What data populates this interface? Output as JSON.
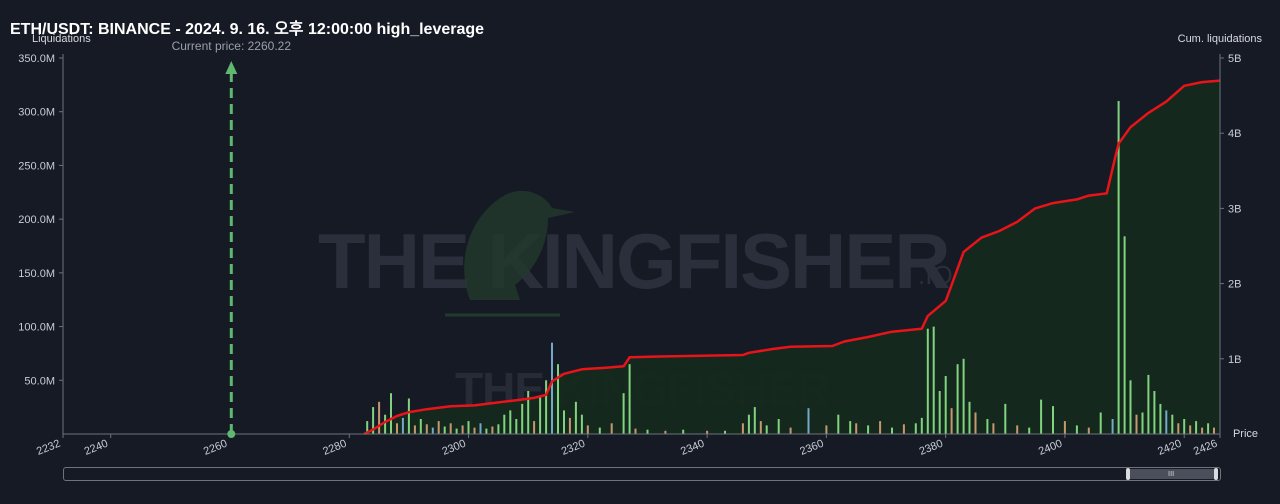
{
  "title": "ETH/USDT: BINANCE - 2024. 9. 16. 오후 12:00:00 high_leverage",
  "watermark": {
    "main": "THE KINGFISHER",
    "suffix": ".IO"
  },
  "scrollbar": {
    "grip": "III"
  },
  "colors": {
    "background": "#161a25",
    "cum_line": "#e8141a",
    "cum_fill": "#14291c",
    "current_price_marker": "#5fb870",
    "bar_green": "#8ee58a",
    "bar_orange": "#d8a47a",
    "bar_blue": "#7fb7d8"
  },
  "chart_data": {
    "type": "bar",
    "xlabel": "Price",
    "ylabel": "Liquidations",
    "y2label": "Cum. liquidations",
    "xlim": [
      2232,
      2426
    ],
    "ylim": [
      0,
      350000000
    ],
    "y2lim": [
      0,
      5000000000
    ],
    "x_ticks": [
      2232,
      2240,
      2260,
      2280,
      2300,
      2320,
      2340,
      2360,
      2380,
      2400,
      2420,
      2426
    ],
    "y_ticks": [
      "50.0M",
      "100.0M",
      "150.0M",
      "200.0M",
      "250.0M",
      "300.0M",
      "350.0M"
    ],
    "y2_ticks": [
      "1B",
      "2B",
      "3B",
      "4B",
      "5B"
    ],
    "current_price": {
      "label": "Current price: 2260.22",
      "value": 2260.22
    },
    "series": [
      {
        "kind": "cumulative-line",
        "points": [
          [
            2282.5,
            0
          ],
          [
            2284,
            60000000
          ],
          [
            2286,
            160000000
          ],
          [
            2288,
            240000000
          ],
          [
            2290,
            290000000
          ],
          [
            2293,
            330000000
          ],
          [
            2297,
            370000000
          ],
          [
            2301,
            380000000
          ],
          [
            2305,
            420000000
          ],
          [
            2308,
            450000000
          ],
          [
            2311,
            480000000
          ],
          [
            2313,
            520000000
          ],
          [
            2314,
            700000000
          ],
          [
            2316,
            800000000
          ],
          [
            2319,
            860000000
          ],
          [
            2323,
            880000000
          ],
          [
            2326,
            900000000
          ],
          [
            2327,
            1020000000
          ],
          [
            2332,
            1030000000
          ],
          [
            2346,
            1050000000
          ],
          [
            2347,
            1080000000
          ],
          [
            2351,
            1130000000
          ],
          [
            2354,
            1160000000
          ],
          [
            2361,
            1170000000
          ],
          [
            2363,
            1230000000
          ],
          [
            2367,
            1290000000
          ],
          [
            2371,
            1360000000
          ],
          [
            2376,
            1400000000
          ],
          [
            2377,
            1570000000
          ],
          [
            2380,
            1770000000
          ],
          [
            2381,
            1980000000
          ],
          [
            2383,
            2420000000
          ],
          [
            2386,
            2610000000
          ],
          [
            2389,
            2700000000
          ],
          [
            2392,
            2820000000
          ],
          [
            2395,
            3000000000
          ],
          [
            2398,
            3070000000
          ],
          [
            2402,
            3120000000
          ],
          [
            2404,
            3170000000
          ],
          [
            2407,
            3200000000
          ],
          [
            2408.5,
            3700000000
          ],
          [
            2409,
            3860000000
          ],
          [
            2411,
            4080000000
          ],
          [
            2414,
            4270000000
          ],
          [
            2417,
            4420000000
          ],
          [
            2420,
            4630000000
          ],
          [
            2423,
            4680000000
          ],
          [
            2426,
            4700000000
          ]
        ]
      }
    ],
    "bars": [
      [
        2283,
        12000000,
        "g"
      ],
      [
        2284,
        25000000,
        "g"
      ],
      [
        2285,
        30000000,
        "o"
      ],
      [
        2286,
        18000000,
        "g"
      ],
      [
        2287,
        38000000,
        "g"
      ],
      [
        2288,
        10000000,
        "o"
      ],
      [
        2289,
        15000000,
        "b"
      ],
      [
        2290,
        33000000,
        "g"
      ],
      [
        2291,
        8000000,
        "o"
      ],
      [
        2292,
        14000000,
        "g"
      ],
      [
        2293,
        9000000,
        "o"
      ],
      [
        2294,
        6000000,
        "b"
      ],
      [
        2295,
        12000000,
        "o"
      ],
      [
        2296,
        7000000,
        "g"
      ],
      [
        2297,
        10000000,
        "o"
      ],
      [
        2298,
        5000000,
        "g"
      ],
      [
        2299,
        8000000,
        "o"
      ],
      [
        2300,
        12000000,
        "g"
      ],
      [
        2301,
        6000000,
        "o"
      ],
      [
        2302,
        10000000,
        "b"
      ],
      [
        2303,
        5000000,
        "g"
      ],
      [
        2304,
        7000000,
        "o"
      ],
      [
        2305,
        9000000,
        "g"
      ],
      [
        2306,
        18000000,
        "g"
      ],
      [
        2307,
        22000000,
        "g"
      ],
      [
        2308,
        14000000,
        "g"
      ],
      [
        2309,
        28000000,
        "g"
      ],
      [
        2310,
        40000000,
        "g"
      ],
      [
        2311,
        12000000,
        "o"
      ],
      [
        2312,
        35000000,
        "g"
      ],
      [
        2313,
        50000000,
        "g"
      ],
      [
        2314,
        85000000,
        "b"
      ],
      [
        2315,
        65000000,
        "g"
      ],
      [
        2316,
        22000000,
        "g"
      ],
      [
        2317,
        15000000,
        "o"
      ],
      [
        2318,
        30000000,
        "g"
      ],
      [
        2319,
        18000000,
        "g"
      ],
      [
        2320,
        8000000,
        "o"
      ],
      [
        2322,
        6000000,
        "g"
      ],
      [
        2324,
        10000000,
        "o"
      ],
      [
        2326,
        38000000,
        "g"
      ],
      [
        2327,
        65000000,
        "g"
      ],
      [
        2328,
        5000000,
        "o"
      ],
      [
        2330,
        4000000,
        "g"
      ],
      [
        2333,
        3000000,
        "o"
      ],
      [
        2336,
        4000000,
        "g"
      ],
      [
        2340,
        3000000,
        "o"
      ],
      [
        2343,
        3000000,
        "g"
      ],
      [
        2346,
        10000000,
        "o"
      ],
      [
        2347,
        18000000,
        "g"
      ],
      [
        2348,
        25000000,
        "g"
      ],
      [
        2349,
        12000000,
        "o"
      ],
      [
        2350,
        8000000,
        "g"
      ],
      [
        2352,
        14000000,
        "g"
      ],
      [
        2354,
        6000000,
        "o"
      ],
      [
        2357,
        24000000,
        "b"
      ],
      [
        2360,
        8000000,
        "o"
      ],
      [
        2362,
        18000000,
        "g"
      ],
      [
        2364,
        12000000,
        "g"
      ],
      [
        2365,
        10000000,
        "o"
      ],
      [
        2367,
        8000000,
        "g"
      ],
      [
        2369,
        12000000,
        "o"
      ],
      [
        2371,
        6000000,
        "g"
      ],
      [
        2373,
        9000000,
        "o"
      ],
      [
        2375,
        10000000,
        "g"
      ],
      [
        2376,
        15000000,
        "g"
      ],
      [
        2377,
        98000000,
        "g"
      ],
      [
        2378,
        100000000,
        "g"
      ],
      [
        2379,
        40000000,
        "g"
      ],
      [
        2380,
        54000000,
        "g"
      ],
      [
        2381,
        24000000,
        "o"
      ],
      [
        2382,
        65000000,
        "g"
      ],
      [
        2383,
        70000000,
        "g"
      ],
      [
        2384,
        30000000,
        "g"
      ],
      [
        2385,
        20000000,
        "o"
      ],
      [
        2387,
        14000000,
        "g"
      ],
      [
        2388,
        10000000,
        "o"
      ],
      [
        2390,
        28000000,
        "g"
      ],
      [
        2392,
        8000000,
        "o"
      ],
      [
        2394,
        6000000,
        "g"
      ],
      [
        2396,
        32000000,
        "g"
      ],
      [
        2398,
        26000000,
        "g"
      ],
      [
        2400,
        12000000,
        "o"
      ],
      [
        2402,
        8000000,
        "g"
      ],
      [
        2404,
        6000000,
        "o"
      ],
      [
        2406,
        20000000,
        "g"
      ],
      [
        2408,
        14000000,
        "b"
      ],
      [
        2409,
        310000000,
        "g"
      ],
      [
        2410,
        184000000,
        "g"
      ],
      [
        2411,
        50000000,
        "g"
      ],
      [
        2412,
        18000000,
        "o"
      ],
      [
        2413,
        20000000,
        "g"
      ],
      [
        2414,
        55000000,
        "g"
      ],
      [
        2415,
        40000000,
        "g"
      ],
      [
        2416,
        28000000,
        "g"
      ],
      [
        2417,
        22000000,
        "b"
      ],
      [
        2418,
        18000000,
        "g"
      ],
      [
        2419,
        10000000,
        "o"
      ],
      [
        2420,
        14000000,
        "g"
      ],
      [
        2421,
        8000000,
        "o"
      ],
      [
        2422,
        12000000,
        "g"
      ],
      [
        2423,
        6000000,
        "o"
      ],
      [
        2424,
        10000000,
        "g"
      ],
      [
        2425,
        6000000,
        "o"
      ]
    ]
  }
}
